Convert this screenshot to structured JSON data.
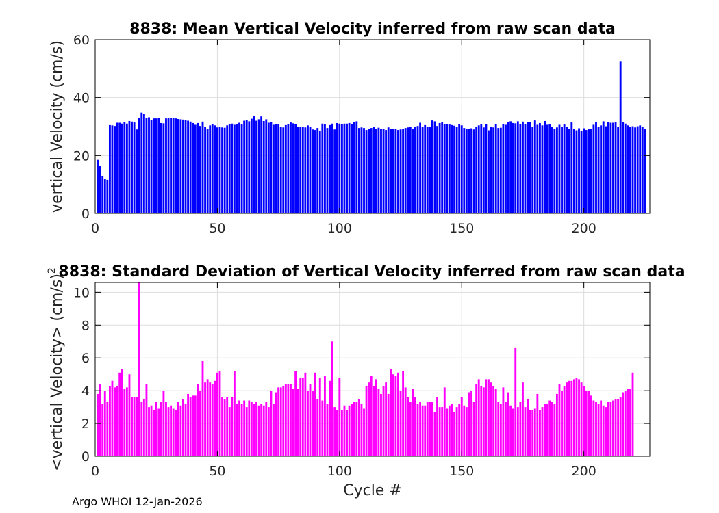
{
  "footer": "Argo WHOI 12-Jan-2026",
  "colors": {
    "mean_bar": "#0000ff",
    "std_bar": "#ff00ff",
    "grid": "#dddddd",
    "axis": "#000000"
  },
  "chart_data": [
    {
      "id": "mean",
      "type": "bar",
      "title": "8838: Mean Vertical Velocity inferred from raw scan data",
      "xlabel": "",
      "ylabel": "vertical Velocity (cm/s)",
      "xlim": [
        0,
        227
      ],
      "ylim": [
        0,
        60
      ],
      "xticks": [
        0,
        50,
        100,
        150,
        200
      ],
      "yticks": [
        0,
        20,
        40,
        60
      ],
      "grid": true,
      "x_start": 1,
      "values": [
        18.5,
        16.3,
        13.0,
        12.0,
        11.6,
        30.5,
        30.4,
        30.2,
        31.3,
        31.3,
        31.0,
        31.6,
        31.0,
        31.9,
        31.7,
        31.4,
        29.0,
        33.0,
        34.8,
        34.4,
        33.0,
        33.2,
        32.3,
        32.8,
        32.8,
        32.9,
        31.2,
        31.1,
        32.8,
        33.0,
        32.9,
        32.9,
        32.8,
        32.6,
        32.5,
        32.4,
        32.2,
        32.0,
        31.7,
        31.2,
        30.6,
        31.2,
        30.2,
        31.7,
        29.9,
        29.1,
        30.4,
        30.9,
        30.4,
        29.7,
        29.9,
        29.7,
        29.6,
        30.4,
        30.9,
        31.0,
        30.6,
        30.9,
        31.3,
        30.9,
        32.0,
        32.3,
        31.8,
        32.7,
        33.7,
        32.0,
        32.5,
        33.5,
        31.9,
        32.5,
        31.3,
        31.5,
        30.6,
        30.9,
        30.8,
        30.0,
        29.7,
        30.5,
        30.8,
        31.4,
        31.1,
        30.8,
        29.9,
        30.0,
        29.9,
        29.7,
        30.4,
        29.9,
        29.0,
        28.8,
        29.5,
        28.6,
        31.0,
        30.7,
        29.5,
        30.5,
        31.0,
        29.0,
        31.2,
        31.0,
        30.8,
        31.0,
        31.0,
        31.2,
        30.9,
        31.5,
        31.8,
        29.5,
        29.7,
        29.5,
        28.8,
        29.1,
        29.5,
        29.9,
        29.1,
        29.6,
        29.3,
        29.2,
        28.8,
        29.7,
        29.2,
        29.1,
        29.2,
        28.8,
        29.0,
        29.2,
        29.5,
        29.7,
        29.8,
        29.2,
        29.9,
        30.2,
        31.3,
        30.0,
        30.5,
        30.0,
        30.0,
        32.1,
        31.8,
        30.2,
        31.2,
        31.4,
        30.8,
        30.9,
        30.7,
        30.5,
        30.3,
        30.0,
        30.9,
        30.4,
        29.5,
        29.1,
        29.2,
        29.4,
        29.0,
        29.8,
        30.4,
        30.7,
        29.7,
        30.8,
        28.7,
        29.9,
        29.7,
        30.8,
        29.5,
        29.6,
        30.8,
        30.6,
        31.5,
        31.8,
        31.2,
        31.1,
        31.8,
        30.8,
        31.7,
        30.8,
        31.6,
        31.6,
        29.9,
        32.1,
        30.6,
        31.2,
        30.4,
        31.9,
        30.6,
        30.7,
        30.0,
        29.1,
        29.7,
        30.6,
        29.9,
        30.7,
        29.8,
        29.2,
        31.4,
        29.2,
        28.7,
        29.4,
        28.5,
        29.4,
        28.8,
        29.2,
        29.1,
        30.6,
        31.6,
        30.0,
        30.4,
        31.8,
        30.1,
        31.6,
        31.3,
        31.3,
        31.6,
        30.0,
        52.6,
        31.6,
        31.0,
        30.4,
        30.0,
        30.1,
        29.7,
        30.1,
        30.4,
        30.0,
        29.2
      ]
    },
    {
      "id": "std",
      "type": "bar",
      "title": "8838: Standard Deviation of Vertical Velocity inferred from raw scan data",
      "xlabel": "Cycle #",
      "ylabel": "<vertical Velocity> (cm/s)",
      "ylabel_superscript": "2",
      "xlim": [
        0,
        227
      ],
      "ylim": [
        0,
        10.6
      ],
      "xticks": [
        0,
        50,
        100,
        150,
        200
      ],
      "yticks": [
        0,
        2,
        4,
        6,
        8,
        10
      ],
      "grid": true,
      "x_start": 1,
      "values": [
        3.8,
        4.4,
        3.2,
        4.0,
        3.3,
        4.3,
        4.6,
        4.2,
        4.3,
        5.1,
        5.3,
        4.1,
        4.2,
        5.0,
        3.6,
        3.6,
        3.6,
        10.6,
        3.3,
        3.5,
        4.4,
        3.0,
        3.1,
        2.8,
        3.3,
        2.9,
        3.3,
        4.0,
        3.3,
        3.0,
        3.1,
        2.9,
        2.8,
        3.3,
        3.1,
        3.5,
        3.2,
        3.8,
        3.6,
        3.7,
        3.7,
        4.4,
        4.0,
        5.8,
        4.5,
        4.7,
        4.5,
        4.4,
        4.6,
        5.1,
        5.2,
        3.6,
        3.5,
        3.6,
        3.0,
        3.6,
        5.2,
        3.2,
        3.4,
        3.2,
        3.4,
        3.0,
        3.4,
        3.3,
        3.2,
        3.3,
        3.1,
        3.2,
        3.1,
        3.3,
        3.0,
        4.0,
        3.2,
        3.9,
        4.2,
        4.2,
        4.3,
        4.4,
        4.4,
        4.4,
        4.1,
        5.2,
        4.1,
        4.8,
        4.8,
        5.1,
        4.0,
        4.4,
        4.0,
        5.1,
        3.5,
        4.8,
        3.4,
        4.9,
        3.2,
        4.6,
        7.0,
        3.0,
        2.8,
        4.8,
        2.8,
        3.1,
        2.8,
        3.1,
        3.2,
        3.3,
        3.3,
        3.5,
        3.2,
        2.9,
        4.3,
        4.5,
        4.9,
        4.3,
        4.7,
        4.1,
        3.8,
        4.3,
        4.5,
        3.8,
        5.3,
        5.0,
        4.9,
        5.1,
        4.0,
        5.2,
        4.2,
        3.6,
        3.3,
        4.1,
        3.6,
        3.2,
        3.3,
        3.1,
        3.1,
        3.3,
        3.3,
        3.3,
        2.7,
        3.6,
        3.0,
        3.0,
        4.2,
        2.9,
        3.1,
        3.2,
        2.7,
        3.0,
        3.2,
        3.6,
        3.1,
        3.0,
        3.9,
        4.0,
        3.3,
        4.4,
        4.7,
        4.3,
        4.2,
        4.7,
        4.7,
        4.5,
        4.3,
        4.1,
        3.3,
        3.2,
        4.2,
        3.3,
        3.9,
        3.1,
        2.9,
        6.6,
        3.0,
        3.3,
        4.5,
        3.0,
        3.5,
        2.8,
        2.8,
        2.9,
        3.8,
        2.8,
        3.0,
        3.2,
        3.2,
        3.4,
        3.3,
        3.2,
        3.8,
        4.4,
        4.0,
        4.3,
        4.5,
        4.6,
        4.6,
        4.7,
        4.8,
        4.7,
        4.5,
        4.3,
        4.0,
        4.0,
        3.7,
        3.4,
        3.3,
        3.2,
        3.4,
        3.1,
        3.0,
        3.3,
        3.3,
        3.4,
        3.5,
        3.5,
        3.6,
        3.9,
        4.0,
        4.1,
        4.1,
        5.1
      ]
    }
  ]
}
